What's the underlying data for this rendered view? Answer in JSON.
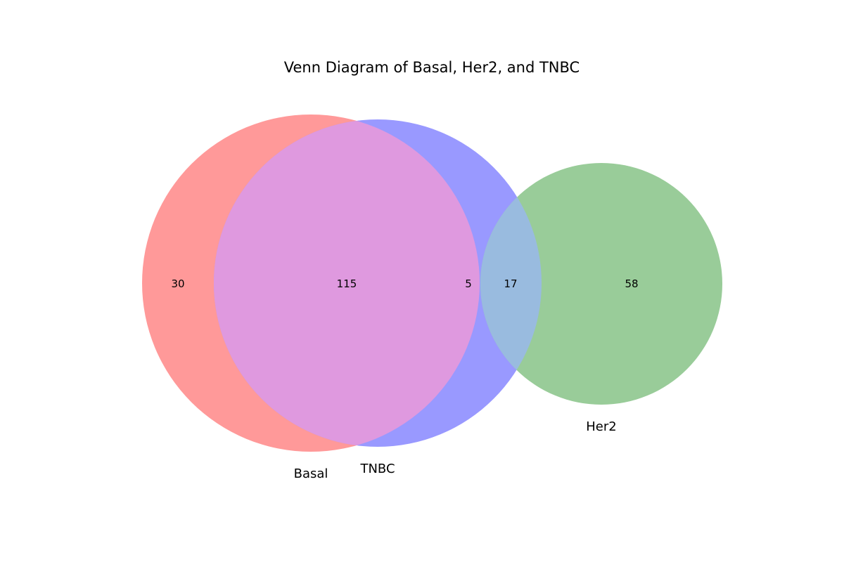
{
  "title": "Venn Diagram of Basal, Her2, and TNBC",
  "sets": {
    "basal": {
      "label": "Basal",
      "color": "#ff9999"
    },
    "tnbc": {
      "label": "TNBC",
      "color": "#9999ff"
    },
    "her2": {
      "label": "Her2",
      "color": "#99cc99"
    }
  },
  "overlap_colors": {
    "basal_tnbc": "#df99df",
    "tnbc_her2": "#99bbdf"
  },
  "regions": {
    "basal_only": "30",
    "basal_tnbc": "115",
    "tnbc_only": "5",
    "tnbc_her2": "17",
    "her2_only": "58"
  }
}
